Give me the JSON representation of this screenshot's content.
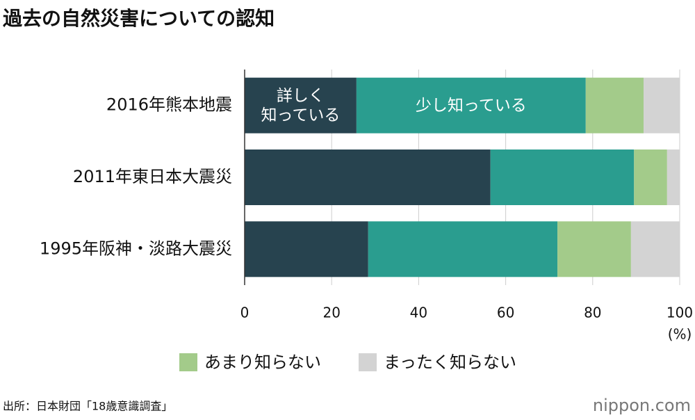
{
  "chart_data": {
    "type": "stacked_barh",
    "title": "過去の自然災害についての認知",
    "categories": [
      "2016年熊本地震",
      "2011年東日本大震災",
      "1995年阪神・淡路大震災"
    ],
    "series": [
      {
        "name": "詳しく\n知っている",
        "color": "#27434f",
        "label_position": "bar",
        "values": [
          25.7,
          56.5,
          28.4
        ]
      },
      {
        "name": "少し知っている",
        "color": "#2a9d8f",
        "label_position": "bar",
        "values": [
          52.7,
          33,
          43.5
        ]
      },
      {
        "name": "あまり知らない",
        "color": "#a3cb8a",
        "label_position": "legend",
        "values": [
          13.3,
          7.6,
          16.9
        ]
      },
      {
        "name": "まったく知らない",
        "color": "#d3d3d3",
        "label_position": "legend",
        "values": [
          8.3,
          2.9,
          11.2
        ]
      }
    ],
    "xlim": [
      0,
      100
    ],
    "xticks": [
      0,
      20,
      40,
      60,
      80,
      100
    ],
    "x_unit": "(%)",
    "grid": true,
    "source": "出所：日本財団「18歳意識調査」",
    "logo": "nippon.com"
  }
}
